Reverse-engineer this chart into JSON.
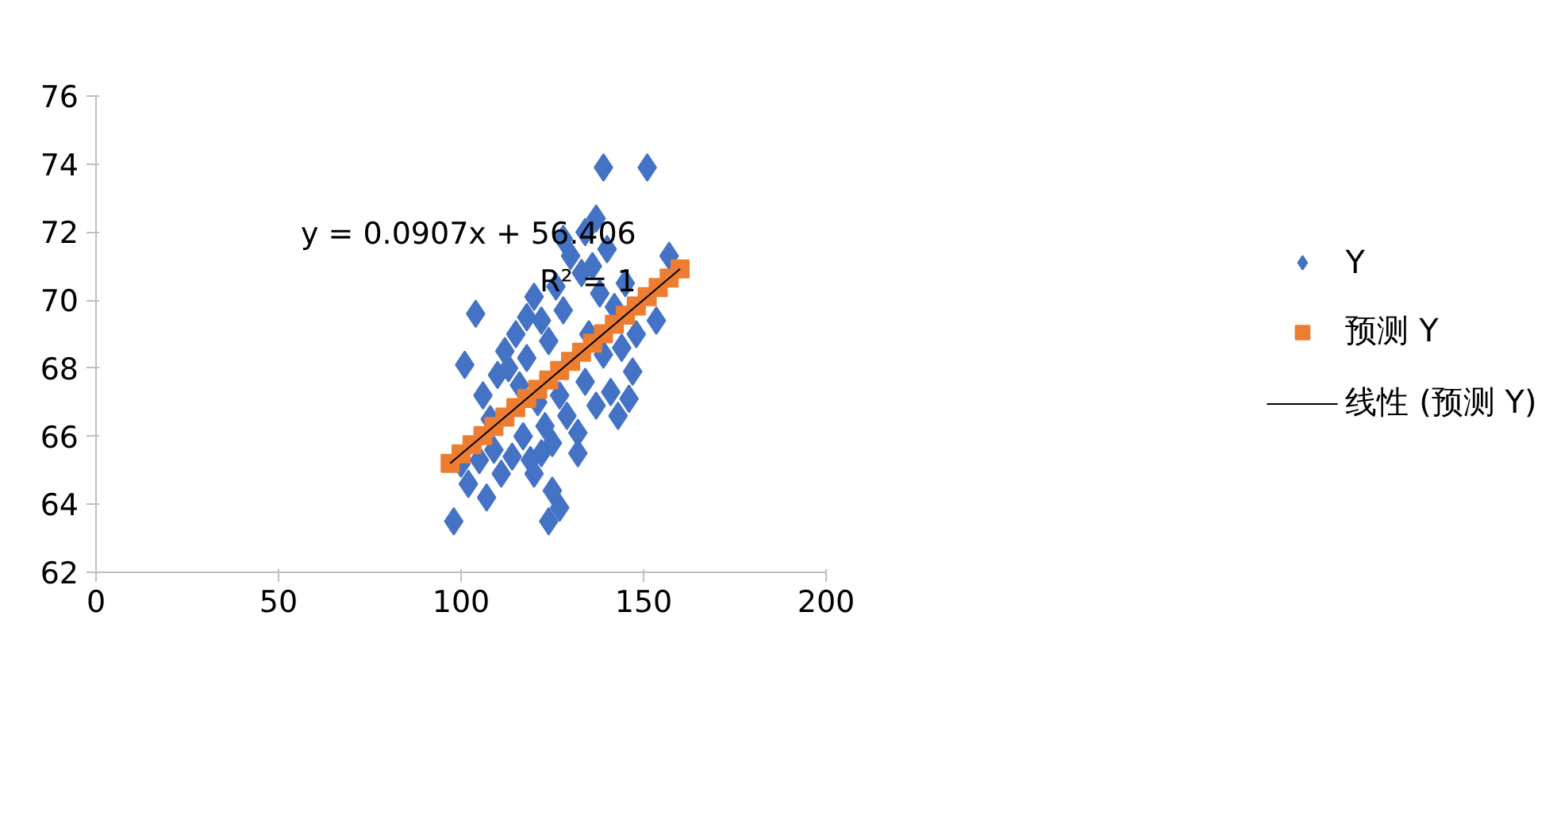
{
  "chart_data": {
    "type": "scatter",
    "xlim": [
      0,
      200
    ],
    "xticks": [
      0,
      50,
      100,
      150,
      200
    ],
    "ylim": [
      62,
      76
    ],
    "yticks": [
      62,
      64,
      66,
      68,
      70,
      72,
      74,
      76
    ],
    "grid": false,
    "legend": "right",
    "annotations": [
      "y = 0.0907x + 56.406",
      "R² = 1"
    ],
    "series": [
      {
        "name": "Y",
        "marker": "diamond",
        "color": "#4472c4",
        "x": [
          98,
          139,
          151,
          137,
          104,
          101,
          124,
          127,
          125,
          107,
          153.5,
          157,
          146,
          100,
          102,
          105,
          106,
          108,
          109,
          110,
          111,
          112,
          114,
          115,
          116,
          117,
          118,
          119,
          120,
          121,
          122,
          123,
          124,
          125,
          126,
          127,
          128,
          129,
          130,
          132,
          133,
          134,
          135,
          136,
          137,
          138,
          139,
          140,
          141,
          142,
          143,
          144,
          145,
          147,
          148,
          132,
          120,
          118,
          128,
          134,
          113,
          122
        ],
        "values": [
          63.5,
          73.9,
          73.9,
          72.4,
          69.6,
          68.1,
          63.5,
          63.9,
          64.4,
          64.2,
          69.4,
          71.3,
          67.1,
          65.2,
          64.6,
          65.3,
          67.2,
          66.5,
          65.6,
          67.8,
          64.9,
          68.5,
          65.4,
          69.0,
          67.5,
          66.0,
          68.3,
          65.3,
          70.1,
          67.0,
          69.4,
          66.3,
          68.8,
          65.8,
          70.4,
          67.2,
          69.7,
          66.6,
          71.3,
          66.1,
          70.8,
          67.6,
          69.0,
          71.0,
          66.9,
          70.2,
          68.4,
          71.5,
          67.3,
          69.8,
          66.6,
          68.6,
          70.5,
          67.9,
          69.0,
          65.5,
          64.9,
          69.5,
          71.8,
          72.0,
          68.0,
          65.5
        ]
      },
      {
        "name": "预测 Y",
        "marker": "square",
        "color": "#ed7d31",
        "x": [
          97,
          100,
          103,
          106,
          109,
          112,
          115,
          118,
          121,
          124,
          127,
          130,
          133,
          136,
          139,
          142,
          145,
          148,
          151,
          154,
          157,
          160
        ],
        "values": [
          65.2,
          65.48,
          65.75,
          66.02,
          66.29,
          66.56,
          66.84,
          67.11,
          67.38,
          67.65,
          67.93,
          68.2,
          68.47,
          68.74,
          69.01,
          69.29,
          69.56,
          69.83,
          70.1,
          70.37,
          70.65,
          70.92
        ]
      },
      {
        "name": "线性 (预测 Y)",
        "type": "line",
        "line_style": "solid",
        "color": "#000000",
        "x": [
          97,
          160
        ],
        "values": [
          65.2,
          70.92
        ]
      }
    ]
  }
}
